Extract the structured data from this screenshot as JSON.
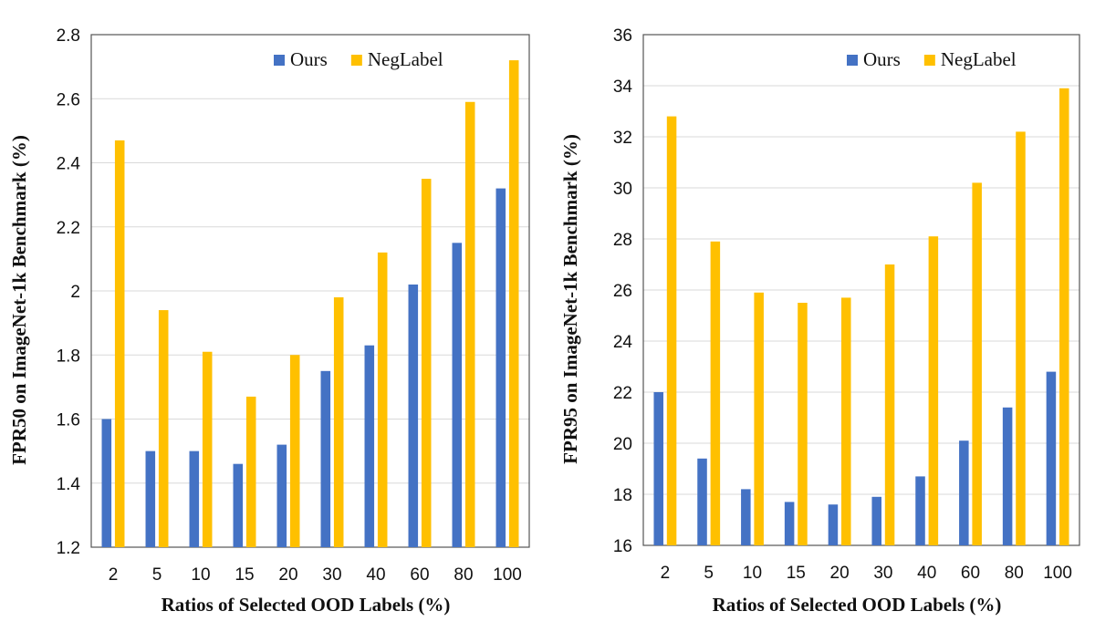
{
  "colors": {
    "ours": "#4472C4",
    "neglabel": "#FFC000",
    "grid": "#d9d9d9",
    "axis": "#555555"
  },
  "chart_data": [
    {
      "type": "bar",
      "categories": [
        "2",
        "5",
        "10",
        "15",
        "20",
        "30",
        "40",
        "60",
        "80",
        "100"
      ],
      "series": [
        {
          "name": "Ours",
          "values": [
            1.6,
            1.5,
            1.5,
            1.46,
            1.52,
            1.75,
            1.83,
            2.02,
            2.15,
            2.32
          ]
        },
        {
          "name": "NegLabel",
          "values": [
            2.47,
            1.94,
            1.81,
            1.67,
            1.8,
            1.98,
            2.12,
            2.35,
            2.59,
            2.72
          ]
        }
      ],
      "xlabel": "Ratios of Selected OOD Labels (%)",
      "ylabel": "FPR50 on ImageNet-1k Benchmark (%)",
      "ylim": [
        1.2,
        2.8
      ],
      "yticks": [
        "1.2",
        "1.4",
        "1.6",
        "1.8",
        "2",
        "2.2",
        "2.4",
        "2.6",
        "2.8"
      ],
      "grid": true,
      "legend": "top-right"
    },
    {
      "type": "bar",
      "categories": [
        "2",
        "5",
        "10",
        "15",
        "20",
        "30",
        "40",
        "60",
        "80",
        "100"
      ],
      "series": [
        {
          "name": "Ours",
          "values": [
            22.0,
            19.4,
            18.2,
            17.7,
            17.6,
            17.9,
            18.7,
            20.1,
            21.4,
            22.8
          ]
        },
        {
          "name": "NegLabel",
          "values": [
            32.8,
            27.9,
            25.9,
            25.5,
            25.7,
            27.0,
            28.1,
            30.2,
            32.2,
            33.9
          ]
        }
      ],
      "xlabel": "Ratios of Selected OOD Labels (%)",
      "ylabel": "FPR95 on ImageNet-1k Benchmark (%)",
      "ylim": [
        16,
        36
      ],
      "yticks": [
        "16",
        "18",
        "20",
        "22",
        "24",
        "26",
        "28",
        "30",
        "32",
        "34",
        "36"
      ],
      "grid": true,
      "legend": "top-right"
    }
  ]
}
